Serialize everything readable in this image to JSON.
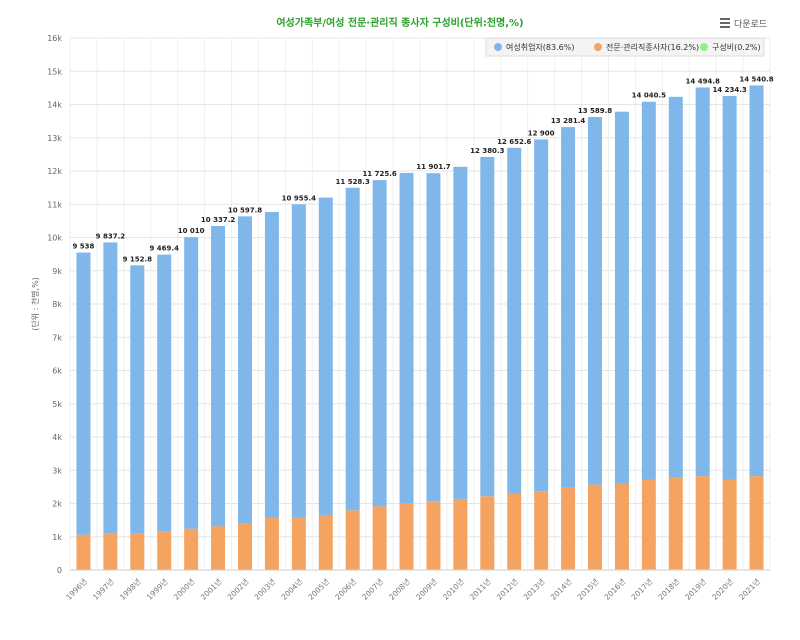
{
  "title": "여성가족부/여성 전문·관리직 종사자 구성비(단위:천명,%)",
  "download_label": "다운로드",
  "download_icon": "hamburger-menu-icon",
  "colors": {
    "accent_title": "#2aa12a",
    "series_total": "#7fb7ea",
    "series_prof": "#f4a460",
    "series_ratio": "#90ee90"
  },
  "chart_data": {
    "type": "bar",
    "stacked": true,
    "ylabel": "(단위 : 천명,%)",
    "ylim": [
      0,
      16000
    ],
    "yticks": [
      "0",
      "1k",
      "2k",
      "3k",
      "4k",
      "5k",
      "6k",
      "7k",
      "8k",
      "9k",
      "10k",
      "11k",
      "12k",
      "13k",
      "14k",
      "15k",
      "16k"
    ],
    "categories": [
      "1996년",
      "1997년",
      "1998년",
      "1999년",
      "2000년",
      "2001년",
      "2002년",
      "2003년",
      "2004년",
      "2005년",
      "2006년",
      "2007년",
      "2008년",
      "2009년",
      "2010년",
      "2011년",
      "2012년",
      "2013년",
      "2014년",
      "2015년",
      "2016년",
      "2017년",
      "2018년",
      "2019년",
      "2020년",
      "2021년"
    ],
    "series": [
      {
        "name": "여성취업자(83.6%)",
        "values": [
          8486,
          8741,
          8052,
          8323,
          8767,
          9035,
          9223,
          9195,
          9404,
          9546,
          9699,
          9810,
          9946,
          9865,
          9989,
          10204,
          10399,
          10582,
          10850,
          11055,
          11184,
          11362,
          11460,
          11690,
          11533,
          11752
        ]
      },
      {
        "name": "전문·관리직종사자(16.2%)",
        "values": [
          1050,
          1100,
          1100,
          1150,
          1230,
          1300,
          1400,
          1560,
          1580,
          1640,
          1780,
          1900,
          1980,
          2050,
          2120,
          2200,
          2280,
          2350,
          2450,
          2550,
          2580,
          2700,
          2750,
          2800,
          2700,
          2800
        ]
      },
      {
        "name": "구성비(0.2%)",
        "values": [
          11,
          11,
          11,
          12,
          12,
          12,
          13,
          14,
          14,
          14,
          16,
          16,
          17,
          18,
          18,
          18,
          19,
          19,
          20,
          20,
          20,
          21,
          22,
          22,
          22,
          22
        ]
      }
    ],
    "data_labels": [
      "9 538",
      "9 837.2",
      "9 152.8",
      "9 469.4",
      "10 010",
      "10 337.2",
      "10 597.8",
      "",
      "10 955.4",
      "",
      "11 528.3",
      "11 725.6",
      "",
      "11 901.7",
      "",
      "12 380.3",
      "12 652.6",
      "12 900",
      "13 281.4",
      "13 589.8",
      "",
      "14 040.5",
      "",
      "14 494.8",
      "14 234.3",
      "14 540.8"
    ],
    "legend_position": "top-right",
    "grid": true
  }
}
